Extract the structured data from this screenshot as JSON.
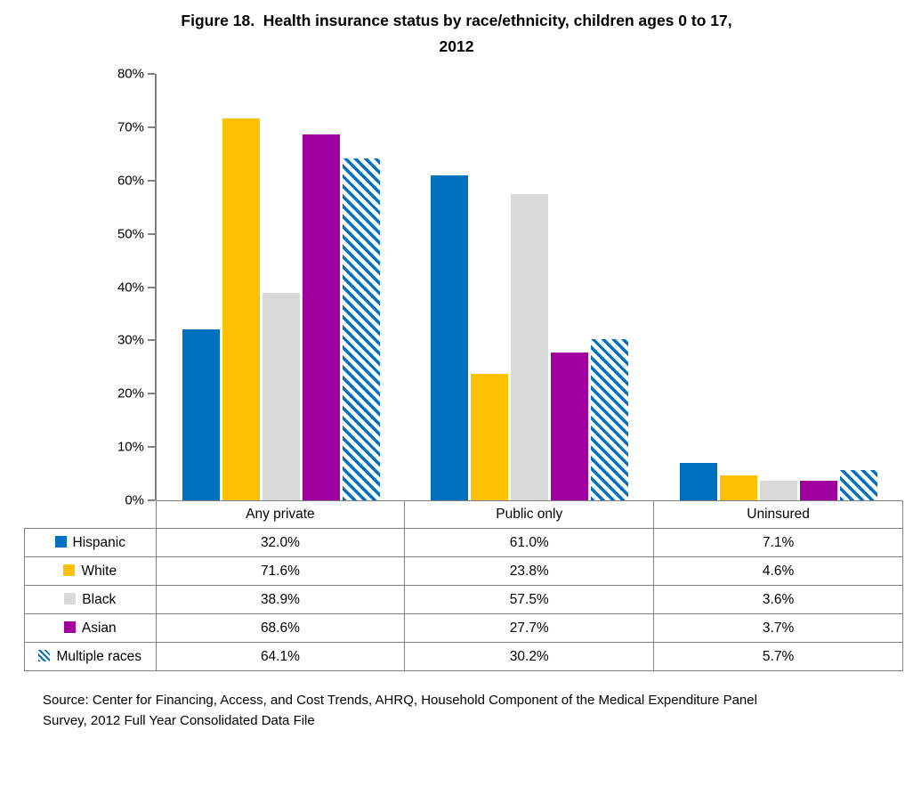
{
  "title": {
    "line1": "Figure 18.  Health insurance status by race/ethnicity, children ages 0 to 17,",
    "line2": "2012"
  },
  "chart_data": {
    "type": "bar",
    "title": "Figure 18. Health insurance status by race/ethnicity, children ages 0 to 17, 2012",
    "categories": [
      "Any private",
      "Public only",
      "Uninsured"
    ],
    "series": [
      {
        "name": "Hispanic",
        "color": "#0070C0",
        "pattern": "solid",
        "values": [
          32.0,
          61.0,
          7.1
        ]
      },
      {
        "name": "White",
        "color": "#FFC000",
        "pattern": "solid",
        "values": [
          71.6,
          23.8,
          4.6
        ]
      },
      {
        "name": "Black",
        "color": "#D9D9D9",
        "pattern": "solid",
        "values": [
          38.9,
          57.5,
          3.6
        ]
      },
      {
        "name": "Asian",
        "color": "#A000A0",
        "pattern": "solid",
        "values": [
          68.6,
          27.7,
          3.7
        ]
      },
      {
        "name": "Multiple races",
        "color": "#0070C0",
        "pattern": "diagonal-hatch",
        "values": [
          64.1,
          30.2,
          5.7
        ]
      }
    ],
    "ylim": [
      0,
      80
    ],
    "ytick_step": 10,
    "ytick_labels": [
      "0%",
      "10%",
      "20%",
      "30%",
      "40%",
      "50%",
      "60%",
      "70%",
      "80%"
    ],
    "value_suffix": "%",
    "grid": false,
    "legend_position": "table-left-column",
    "colors": {
      "axis": "#808080",
      "table_border": "#808080",
      "text": "#000000",
      "background": "#FFFFFF"
    }
  },
  "source": {
    "line1": "Source: Center for Financing, Access, and Cost Trends, AHRQ, Household Component of the Medical Expenditure Panel",
    "line2": "Survey, 2012 Full Year Consolidated Data File"
  }
}
